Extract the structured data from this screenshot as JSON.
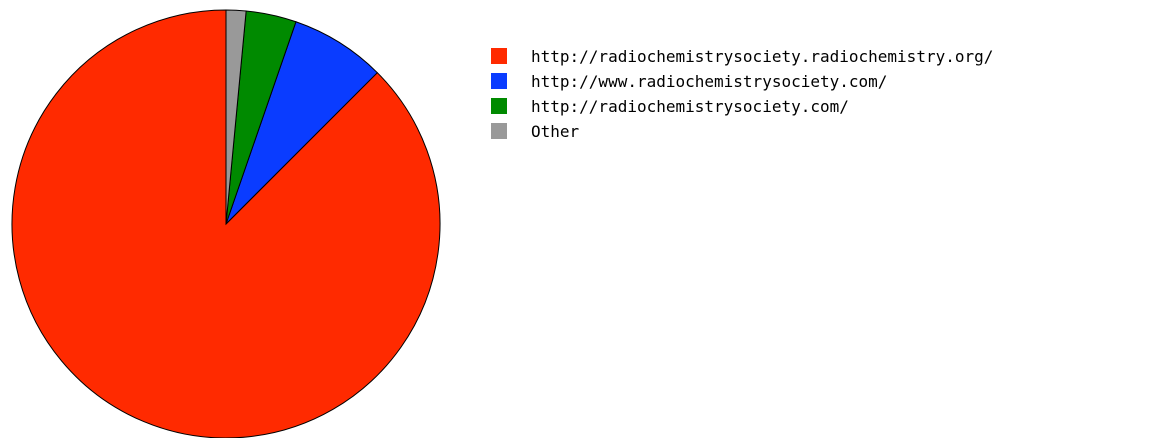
{
  "chart_data": {
    "type": "pie",
    "slices": [
      {
        "label": "http://radiochemistrysociety.radiochemistry.org/",
        "value": 87.5,
        "color": "#ff2a00"
      },
      {
        "label": "http://www.radiochemistrysociety.com/",
        "value": 7.2,
        "color": "#0a3cff"
      },
      {
        "label": "http://radiochemistrysociety.com/",
        "value": 3.8,
        "color": "#008a00"
      },
      {
        "label": "Other",
        "value": 1.5,
        "color": "#999999"
      }
    ],
    "start": "top",
    "direction": "counterclockwise",
    "legend_position": "right"
  }
}
